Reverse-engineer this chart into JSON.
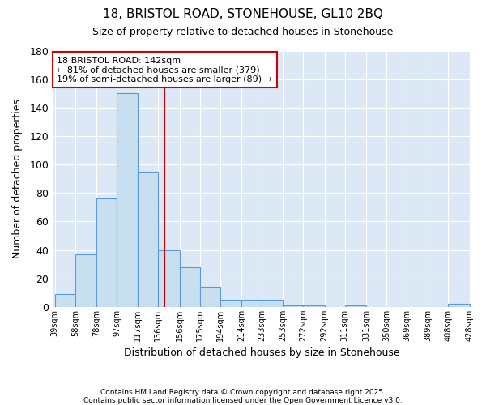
{
  "title1": "18, BRISTOL ROAD, STONEHOUSE, GL10 2BQ",
  "title2": "Size of property relative to detached houses in Stonehouse",
  "xlabel": "Distribution of detached houses by size in Stonehouse",
  "ylabel": "Number of detached properties",
  "bin_edges": [
    39,
    58,
    78,
    97,
    117,
    136,
    156,
    175,
    194,
    214,
    233,
    253,
    272,
    292,
    311,
    331,
    350,
    369,
    389,
    408,
    428
  ],
  "bar_heights": [
    9,
    37,
    76,
    150,
    95,
    40,
    28,
    14,
    5,
    5,
    5,
    1,
    1,
    0,
    1,
    0,
    0,
    0,
    0,
    2
  ],
  "bar_color": "#c8dff0",
  "bar_edge_color": "#5b9bd5",
  "red_line_x": 142,
  "annotation_title": "18 BRISTOL ROAD: 142sqm",
  "annotation_line1": "← 81% of detached houses are smaller (379)",
  "annotation_line2": "19% of semi-detached houses are larger (89) →",
  "property_line_color": "#cc0000",
  "background_color": "#dce8f5",
  "fig_background": "#ffffff",
  "footnote1": "Contains HM Land Registry data © Crown copyright and database right 2025.",
  "footnote2": "Contains public sector information licensed under the Open Government Licence v3.0.",
  "ylim": [
    0,
    180
  ],
  "yticks": [
    0,
    20,
    40,
    60,
    80,
    100,
    120,
    140,
    160,
    180
  ]
}
